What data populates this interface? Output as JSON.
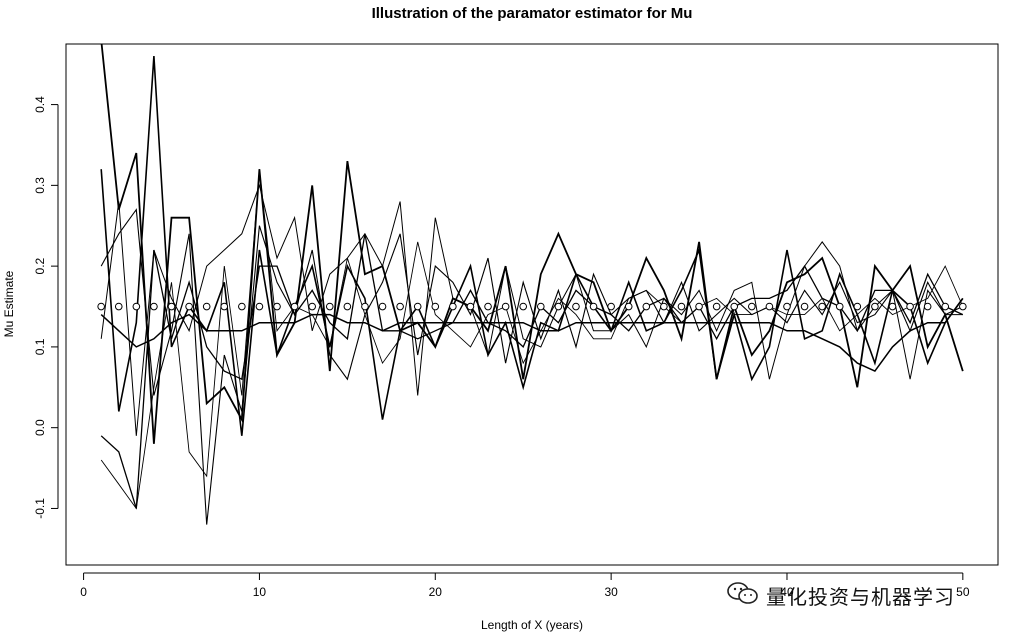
{
  "chart_data": {
    "type": "line",
    "title": "Illustration of the paramator estimator for Mu",
    "xlabel": "Length of X (years)",
    "ylabel": "Mu Estimate",
    "xlim": [
      -1,
      52
    ],
    "ylim": [
      -0.17,
      0.475
    ],
    "x_ticks": [
      0,
      10,
      20,
      30,
      40,
      50
    ],
    "y_ticks": [
      -0.1,
      0.0,
      0.1,
      0.2,
      0.3,
      0.4
    ],
    "x_tick_labels": [
      "0",
      "10",
      "20",
      "30",
      "40",
      "50"
    ],
    "y_tick_labels": [
      "-0.1",
      "0.0",
      "0.1",
      "0.2",
      "0.3",
      "0.4"
    ],
    "true_value_points": {
      "marker": "open-circle",
      "value": 0.15,
      "x": [
        1,
        2,
        3,
        4,
        5,
        6,
        7,
        8,
        9,
        10,
        11,
        12,
        13,
        14,
        15,
        16,
        17,
        18,
        19,
        20,
        21,
        22,
        23,
        24,
        25,
        26,
        27,
        28,
        29,
        30,
        31,
        32,
        33,
        34,
        35,
        36,
        37,
        38,
        39,
        40,
        41,
        42,
        43,
        44,
        45,
        46,
        47,
        48,
        49,
        50
      ]
    },
    "x": [
      1,
      2,
      3,
      4,
      5,
      6,
      7,
      8,
      9,
      10,
      11,
      12,
      13,
      14,
      15,
      16,
      17,
      18,
      19,
      20,
      21,
      22,
      23,
      24,
      25,
      26,
      27,
      28,
      29,
      30,
      31,
      32,
      33,
      34,
      35,
      36,
      37,
      38,
      39,
      40,
      41,
      42,
      43,
      44,
      45,
      46,
      47,
      48,
      49,
      50
    ],
    "series": [
      {
        "width": 1.8,
        "values": [
          0.48,
          0.27,
          0.34,
          -0.02,
          0.26,
          0.26,
          0.03,
          0.05,
          0.01,
          0.32,
          0.09,
          0.13,
          0.3,
          0.07,
          0.33,
          0.19,
          0.2,
          0.12,
          0.13,
          0.1,
          0.16,
          0.15,
          0.12,
          0.2,
          0.06,
          0.19,
          0.24,
          0.19,
          0.18,
          0.12,
          0.15,
          0.21,
          0.17,
          0.11,
          0.23,
          0.06,
          0.15,
          0.09,
          0.12,
          0.18,
          0.19,
          0.21,
          0.15,
          0.05,
          0.2,
          0.17,
          0.2,
          0.1,
          0.14,
          0.07
        ]
      },
      {
        "width": 1.6,
        "values": [
          0.32,
          0.02,
          0.13,
          0.46,
          0.1,
          0.15,
          0.12,
          0.18,
          -0.01,
          0.22,
          0.09,
          0.15,
          0.2,
          0.1,
          0.2,
          0.16,
          0.01,
          0.12,
          0.15,
          0.1,
          0.15,
          0.2,
          0.09,
          0.13,
          0.05,
          0.13,
          0.12,
          0.19,
          0.15,
          0.12,
          0.18,
          0.12,
          0.13,
          0.17,
          0.22,
          0.06,
          0.14,
          0.06,
          0.1,
          0.22,
          0.11,
          0.12,
          0.19,
          0.14,
          0.08,
          0.17,
          0.15,
          0.08,
          0.13,
          0.16
        ]
      },
      {
        "width": 1.0,
        "values": [
          0.11,
          0.28,
          -0.01,
          0.22,
          0.16,
          0.12,
          0.2,
          0.22,
          0.24,
          0.3,
          0.21,
          0.26,
          0.12,
          0.19,
          0.21,
          0.24,
          0.2,
          0.28,
          0.04,
          0.26,
          0.16,
          0.15,
          0.09,
          0.2,
          0.11,
          0.1,
          0.15,
          0.19,
          0.12,
          0.12,
          0.14,
          0.1,
          0.16,
          0.14,
          0.17,
          0.12,
          0.17,
          0.18,
          0.06,
          0.14,
          0.2,
          0.23,
          0.2,
          0.12,
          0.15,
          0.17,
          0.06,
          0.17,
          0.14,
          0.14
        ]
      },
      {
        "width": 1.3,
        "values": [
          -0.01,
          -0.03,
          -0.1,
          0.22,
          0.11,
          0.18,
          0.1,
          0.07,
          0.06,
          0.2,
          0.2,
          0.14,
          0.17,
          0.13,
          0.11,
          0.24,
          0.12,
          0.12,
          0.11,
          0.12,
          0.13,
          0.17,
          0.13,
          0.12,
          0.1,
          0.15,
          0.13,
          0.17,
          0.15,
          0.14,
          0.12,
          0.15,
          0.16,
          0.13,
          0.15,
          0.11,
          0.15,
          0.16,
          0.16,
          0.17,
          0.2,
          0.16,
          0.15,
          0.12,
          0.17,
          0.17,
          0.13,
          0.19,
          0.15,
          0.14
        ]
      },
      {
        "width": 0.9,
        "values": [
          -0.04,
          -0.07,
          -0.1,
          0.05,
          0.18,
          -0.03,
          -0.06,
          0.2,
          0.04,
          0.32,
          0.12,
          0.15,
          0.14,
          0.1,
          0.21,
          0.14,
          0.08,
          0.11,
          0.23,
          0.14,
          0.12,
          0.1,
          0.14,
          0.15,
          0.08,
          0.12,
          0.16,
          0.14,
          0.11,
          0.11,
          0.16,
          0.17,
          0.15,
          0.13,
          0.15,
          0.16,
          0.14,
          0.14,
          0.15,
          0.14,
          0.14,
          0.16,
          0.12,
          0.14,
          0.16,
          0.14,
          0.15,
          0.16,
          0.2,
          0.15
        ]
      },
      {
        "width": 1.1,
        "values": [
          0.2,
          0.24,
          0.27,
          0.04,
          0.12,
          0.24,
          -0.12,
          0.09,
          0.02,
          0.25,
          0.18,
          0.14,
          0.22,
          0.09,
          0.06,
          0.14,
          0.18,
          0.24,
          0.09,
          0.2,
          0.18,
          0.14,
          0.21,
          0.08,
          0.18,
          0.11,
          0.17,
          0.1,
          0.19,
          0.14,
          0.16,
          0.17,
          0.13,
          0.18,
          0.12,
          0.14,
          0.16,
          0.14,
          0.15,
          0.13,
          0.17,
          0.14,
          0.18,
          0.13,
          0.14,
          0.17,
          0.12,
          0.18,
          0.14,
          0.15
        ]
      },
      {
        "width": 1.5,
        "values": [
          0.14,
          0.12,
          0.1,
          0.11,
          0.13,
          0.14,
          0.12,
          0.12,
          0.12,
          0.13,
          0.13,
          0.13,
          0.14,
          0.14,
          0.13,
          0.13,
          0.12,
          0.13,
          0.13,
          0.13,
          0.13,
          0.13,
          0.13,
          0.13,
          0.13,
          0.12,
          0.12,
          0.13,
          0.13,
          0.13,
          0.13,
          0.13,
          0.13,
          0.13,
          0.13,
          0.13,
          0.13,
          0.13,
          0.13,
          0.12,
          0.12,
          0.11,
          0.1,
          0.08,
          0.07,
          0.1,
          0.12,
          0.13,
          0.13,
          0.16
        ]
      }
    ]
  },
  "watermark": {
    "text": "量化投资与机器学习",
    "icon": "wechat-icon"
  }
}
